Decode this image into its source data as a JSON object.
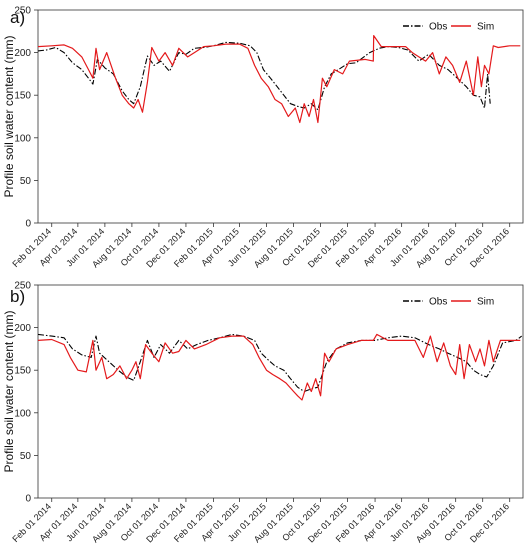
{
  "chart_data": [
    {
      "type": "line",
      "panel_label": "a)",
      "ylabel": "Profile soil water content (mm)",
      "ylim": [
        0,
        250
      ],
      "yticks": [
        0,
        50,
        100,
        150,
        200,
        250
      ],
      "xlim": [
        "2014-01-01",
        "2016-12-31"
      ],
      "xticks": [
        "Feb 01 2014",
        "Apr 01 2014",
        "Jun 01 2014",
        "Aug 01 2014",
        "Oct 01 2014",
        "Dec 01 2014",
        "Feb 01 2015",
        "Apr 01 2015",
        "Jun 01 2015",
        "Aug 01 2015",
        "Oct 01 2015",
        "Dec 01 2015",
        "Feb 01 2016",
        "Apr 01 2016",
        "Jun 01 2016",
        "Aug 01 2016",
        "Oct 01 2016",
        "Dec 01 2016"
      ],
      "legend_position": "top-right",
      "series": [
        {
          "name": "Obs",
          "color": "#000000",
          "style": "dashdot",
          "x": [
            "2014-01-01",
            "2014-01-20",
            "2014-02-10",
            "2014-03-01",
            "2014-03-20",
            "2014-04-10",
            "2014-04-25",
            "2014-05-05",
            "2014-05-15",
            "2014-06-01",
            "2014-06-20",
            "2014-07-10",
            "2014-07-25",
            "2014-08-05",
            "2014-08-20",
            "2014-09-05",
            "2014-09-20",
            "2014-10-05",
            "2014-10-25",
            "2014-11-15",
            "2014-12-01",
            "2014-12-20",
            "2015-01-10",
            "2015-02-01",
            "2015-03-01",
            "2015-04-01",
            "2015-04-25",
            "2015-05-10",
            "2015-05-25",
            "2015-06-10",
            "2015-06-25",
            "2015-07-10",
            "2015-07-25",
            "2015-08-10",
            "2015-08-25",
            "2015-09-10",
            "2015-09-25",
            "2015-10-10",
            "2015-10-25",
            "2015-11-10",
            "2015-12-01",
            "2015-12-20",
            "2016-01-20",
            "2016-02-10",
            "2016-03-01",
            "2016-03-25",
            "2016-04-15",
            "2016-05-10",
            "2016-06-01",
            "2016-06-25",
            "2016-07-15",
            "2016-08-05",
            "2016-08-25",
            "2016-09-10",
            "2016-09-25",
            "2016-10-05",
            "2016-10-12",
            "2016-10-18"
          ],
          "y": [
            202,
            203,
            206,
            200,
            188,
            180,
            170,
            163,
            192,
            182,
            175,
            155,
            145,
            140,
            160,
            196,
            185,
            190,
            178,
            200,
            198,
            205,
            206,
            208,
            212,
            211,
            208,
            200,
            180,
            170,
            160,
            150,
            140,
            137,
            135,
            140,
            133,
            160,
            175,
            180,
            187,
            188,
            200,
            205,
            207,
            206,
            203,
            190,
            198,
            185,
            180,
            170,
            160,
            150,
            148,
            135,
            175,
            140
          ]
        },
        {
          "name": "Sim",
          "color": "#e41a1c",
          "style": "solid",
          "x": [
            "2014-01-01",
            "2014-02-01",
            "2014-03-01",
            "2014-03-20",
            "2014-04-10",
            "2014-04-25",
            "2014-05-05",
            "2014-05-12",
            "2014-05-20",
            "2014-06-05",
            "2014-06-25",
            "2014-07-10",
            "2014-07-25",
            "2014-08-05",
            "2014-08-15",
            "2014-08-25",
            "2014-09-05",
            "2014-09-15",
            "2014-10-01",
            "2014-10-15",
            "2014-11-01",
            "2014-11-15",
            "2014-12-05",
            "2014-12-20",
            "2015-01-10",
            "2015-02-01",
            "2015-03-01",
            "2015-04-01",
            "2015-04-20",
            "2015-05-05",
            "2015-05-20",
            "2015-06-05",
            "2015-06-20",
            "2015-07-05",
            "2015-07-20",
            "2015-08-05",
            "2015-08-15",
            "2015-08-25",
            "2015-09-05",
            "2015-09-15",
            "2015-09-25",
            "2015-10-05",
            "2015-10-15",
            "2015-11-01",
            "2015-11-20",
            "2015-12-05",
            "2016-01-10",
            "2016-01-28",
            "2016-01-29",
            "2016-02-15",
            "2016-03-15",
            "2016-04-10",
            "2016-04-25",
            "2016-05-10",
            "2016-05-25",
            "2016-06-10",
            "2016-06-25",
            "2016-07-10",
            "2016-07-25",
            "2016-08-10",
            "2016-08-25",
            "2016-09-10",
            "2016-09-20",
            "2016-09-28",
            "2016-10-05",
            "2016-10-15",
            "2016-10-25",
            "2016-11-05",
            "2016-12-01",
            "2016-12-25"
          ],
          "y": [
            207,
            208,
            209,
            205,
            195,
            180,
            170,
            205,
            180,
            200,
            170,
            150,
            140,
            135,
            145,
            130,
            165,
            206,
            190,
            200,
            185,
            205,
            195,
            200,
            207,
            208,
            210,
            210,
            205,
            185,
            170,
            160,
            145,
            140,
            125,
            135,
            118,
            140,
            125,
            145,
            118,
            170,
            160,
            180,
            175,
            190,
            192,
            190,
            220,
            207,
            207,
            207,
            200,
            195,
            190,
            200,
            175,
            195,
            185,
            165,
            190,
            150,
            195,
            160,
            185,
            175,
            208,
            206,
            208,
            208
          ]
        }
      ]
    },
    {
      "type": "line",
      "panel_label": "b)",
      "ylabel": "Profile soil water content (mm)",
      "ylim": [
        0,
        250
      ],
      "yticks": [
        0,
        50,
        100,
        150,
        200,
        250
      ],
      "xlim": [
        "2014-01-01",
        "2016-12-31"
      ],
      "xticks": [
        "Feb 01 2014",
        "Apr 01 2014",
        "Jun 01 2014",
        "Aug 01 2014",
        "Oct 01 2014",
        "Dec 01 2014",
        "Feb 01 2015",
        "Apr 01 2015",
        "Jun 01 2015",
        "Aug 01 2015",
        "Oct 01 2015",
        "Dec 01 2015",
        "Feb 01 2016",
        "Apr 01 2016",
        "Jun 01 2016",
        "Aug 01 2016",
        "Oct 01 2016",
        "Dec 01 2016"
      ],
      "legend_position": "top-right",
      "series": [
        {
          "name": "Obs",
          "color": "#000000",
          "style": "dashdot",
          "x": [
            "2014-01-01",
            "2014-02-01",
            "2014-03-01",
            "2014-03-20",
            "2014-04-10",
            "2014-05-01",
            "2014-05-12",
            "2014-05-20",
            "2014-06-10",
            "2014-07-01",
            "2014-07-20",
            "2014-08-05",
            "2014-08-20",
            "2014-09-05",
            "2014-09-20",
            "2014-10-05",
            "2014-10-25",
            "2014-11-15",
            "2014-12-05",
            "2014-12-25",
            "2015-01-20",
            "2015-02-15",
            "2015-03-15",
            "2015-04-10",
            "2015-05-05",
            "2015-05-20",
            "2015-06-05",
            "2015-06-20",
            "2015-07-10",
            "2015-07-25",
            "2015-08-10",
            "2015-08-25",
            "2015-09-10",
            "2015-09-25",
            "2015-10-15",
            "2015-11-05",
            "2015-12-01",
            "2016-01-01",
            "2016-02-01",
            "2016-03-01",
            "2016-04-01",
            "2016-05-01",
            "2016-06-01",
            "2016-06-25",
            "2016-07-15",
            "2016-08-05",
            "2016-08-25",
            "2016-09-10",
            "2016-09-25",
            "2016-10-10",
            "2016-10-25",
            "2016-11-15",
            "2016-12-15",
            "2016-12-28"
          ],
          "y": [
            192,
            190,
            188,
            175,
            168,
            165,
            190,
            170,
            160,
            150,
            142,
            138,
            160,
            185,
            165,
            180,
            170,
            185,
            175,
            180,
            185,
            188,
            192,
            190,
            185,
            170,
            162,
            155,
            150,
            140,
            130,
            125,
            128,
            130,
            160,
            175,
            182,
            185,
            185,
            188,
            190,
            188,
            180,
            175,
            170,
            165,
            160,
            150,
            145,
            142,
            155,
            182,
            185,
            190
          ]
        },
        {
          "name": "Sim",
          "color": "#e41a1c",
          "style": "solid",
          "x": [
            "2014-01-01",
            "2014-02-01",
            "2014-03-01",
            "2014-03-15",
            "2014-04-01",
            "2014-04-20",
            "2014-05-05",
            "2014-05-12",
            "2014-05-25",
            "2014-06-05",
            "2014-06-20",
            "2014-07-05",
            "2014-07-20",
            "2014-08-01",
            "2014-08-10",
            "2014-08-20",
            "2014-09-01",
            "2014-09-15",
            "2014-10-01",
            "2014-10-15",
            "2014-11-01",
            "2014-11-15",
            "2014-12-01",
            "2014-12-20",
            "2015-01-15",
            "2015-02-15",
            "2015-03-15",
            "2015-04-10",
            "2015-05-01",
            "2015-05-15",
            "2015-06-01",
            "2015-06-15",
            "2015-07-01",
            "2015-07-15",
            "2015-08-01",
            "2015-08-10",
            "2015-08-20",
            "2015-09-01",
            "2015-09-10",
            "2015-09-20",
            "2015-10-01",
            "2015-10-10",
            "2015-10-20",
            "2015-11-05",
            "2015-12-01",
            "2016-01-01",
            "2016-01-28",
            "2016-02-05",
            "2016-03-01",
            "2016-04-01",
            "2016-05-01",
            "2016-05-20",
            "2016-06-05",
            "2016-06-20",
            "2016-07-05",
            "2016-07-20",
            "2016-08-01",
            "2016-08-10",
            "2016-08-20",
            "2016-09-01",
            "2016-09-15",
            "2016-09-25",
            "2016-10-05",
            "2016-10-15",
            "2016-10-25",
            "2016-11-10",
            "2016-12-01",
            "2016-12-25"
          ],
          "y": [
            185,
            186,
            180,
            165,
            150,
            148,
            185,
            150,
            165,
            140,
            145,
            155,
            140,
            150,
            160,
            140,
            180,
            170,
            160,
            182,
            170,
            172,
            185,
            175,
            180,
            188,
            190,
            190,
            180,
            165,
            150,
            145,
            140,
            135,
            125,
            120,
            115,
            135,
            125,
            140,
            120,
            170,
            160,
            175,
            180,
            185,
            185,
            192,
            185,
            185,
            185,
            165,
            190,
            160,
            182,
            155,
            145,
            180,
            140,
            180,
            160,
            175,
            155,
            185,
            160,
            185,
            185,
            185
          ]
        }
      ]
    }
  ]
}
